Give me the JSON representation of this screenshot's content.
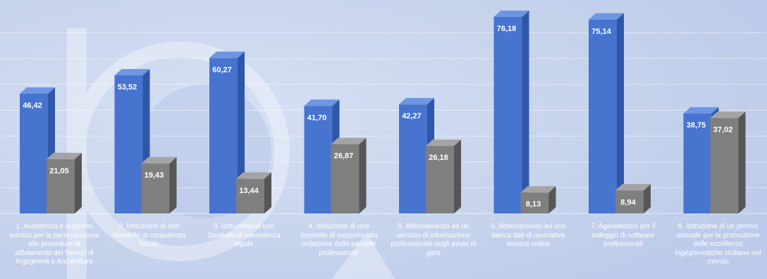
{
  "chart_data": {
    "type": "bar",
    "title": "",
    "xlabel": "",
    "ylabel": "",
    "ylim": [
      0,
      80
    ],
    "grid": true,
    "legend": "none",
    "categories": [
      "1. Assistenza e supporto tecnico per la partecipazione alle procedure di affidamento dei Servizi di Ingegneria e Architettura",
      "2. Istituzione di uno Sportello di consulenza fiscale",
      "3. Istituzione di uno Sportello di consulenza legale",
      "4. Istituzione di uno Sportello di supporto alla redazione delle parcelle professionali",
      "5. Abbonamento ad un servizio di informazione professionale sugli avvisi di gare",
      "6. Abbonamento ad una banca dati di normativa tecnica online",
      "7. Agevolazioni per il noleggio di software professionali",
      "8. Istituzione di un premio annuale per la promozione delle eccellenze ingegneristiche siciliane nel mondo"
    ],
    "series": [
      {
        "values": [
          46.42,
          53.52,
          60.27,
          41.7,
          42.27,
          76.18,
          75.14,
          38.75
        ],
        "labels": [
          "46,42",
          "53,52",
          "60,27",
          "41,70",
          "42,27",
          "76,18",
          "75,14",
          "38,75"
        ],
        "color": "#4a77cf"
      },
      {
        "values": [
          21.05,
          19.43,
          13.44,
          26.87,
          26.18,
          8.13,
          8.94,
          37.02
        ],
        "labels": [
          "21,05",
          "19,43",
          "13,44",
          "26,87",
          "26,18",
          "8,13",
          "8,94",
          "37,02"
        ],
        "color": "#7f7f7f"
      }
    ]
  }
}
